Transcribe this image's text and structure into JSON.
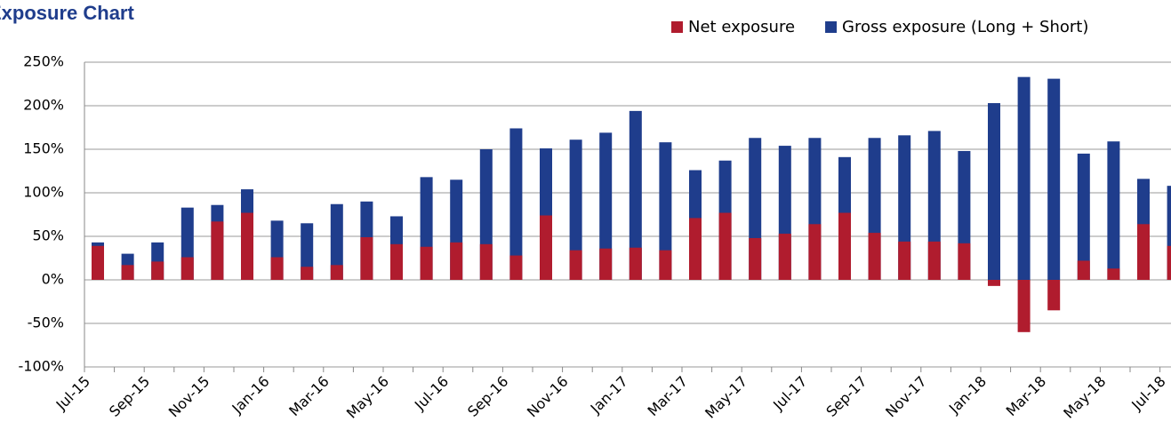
{
  "chart_data": {
    "type": "bar",
    "title": "Exposure Chart",
    "categories": [
      "Jul-15",
      null,
      "Sep-15",
      null,
      "Nov-15",
      null,
      "Jan-16",
      null,
      "Mar-16",
      null,
      "May-16",
      null,
      "Jul-16",
      null,
      "Sep-16",
      null,
      "Nov-16",
      null,
      "Jan-17",
      null,
      "Mar-17",
      null,
      "May-17",
      null,
      "Jul-17",
      null,
      "Sep-17",
      null,
      "Nov-17",
      null,
      "Jan-18",
      null,
      "Mar-18",
      null,
      "May-18",
      null,
      "Jul-18"
    ],
    "series": [
      {
        "name": "Net exposure",
        "color": "#b01c2e",
        "values": [
          39,
          17,
          21,
          26,
          67,
          77,
          26,
          15,
          17,
          49,
          41,
          38,
          43,
          41,
          28,
          74,
          34,
          36,
          37,
          34,
          71,
          77,
          48,
          53,
          64,
          77,
          54,
          44,
          44,
          42,
          -7,
          -60,
          -35,
          22,
          13,
          64,
          39
        ]
      },
      {
        "name": "Gross exposure (Long + Short)",
        "color": "#1f3d8c",
        "values": [
          43,
          30,
          43,
          83,
          86,
          104,
          68,
          65,
          87,
          90,
          73,
          118,
          115,
          150,
          174,
          151,
          161,
          169,
          194,
          158,
          126,
          137,
          163,
          154,
          163,
          141,
          163,
          166,
          171,
          148,
          203,
          233,
          231,
          145,
          159,
          116,
          108
        ]
      }
    ],
    "ylim": [
      -100,
      250
    ],
    "yticks": [
      {
        "value": -100,
        "label": "-100%"
      },
      {
        "value": -50,
        "label": "-50%"
      },
      {
        "value": 0,
        "label": "0%"
      },
      {
        "value": 50,
        "label": "50%"
      },
      {
        "value": 100,
        "label": "100%"
      },
      {
        "value": 150,
        "label": "150%"
      },
      {
        "value": 200,
        "label": "200%"
      },
      {
        "value": 250,
        "label": "250%"
      }
    ],
    "grid": true,
    "legend": "top-right"
  }
}
